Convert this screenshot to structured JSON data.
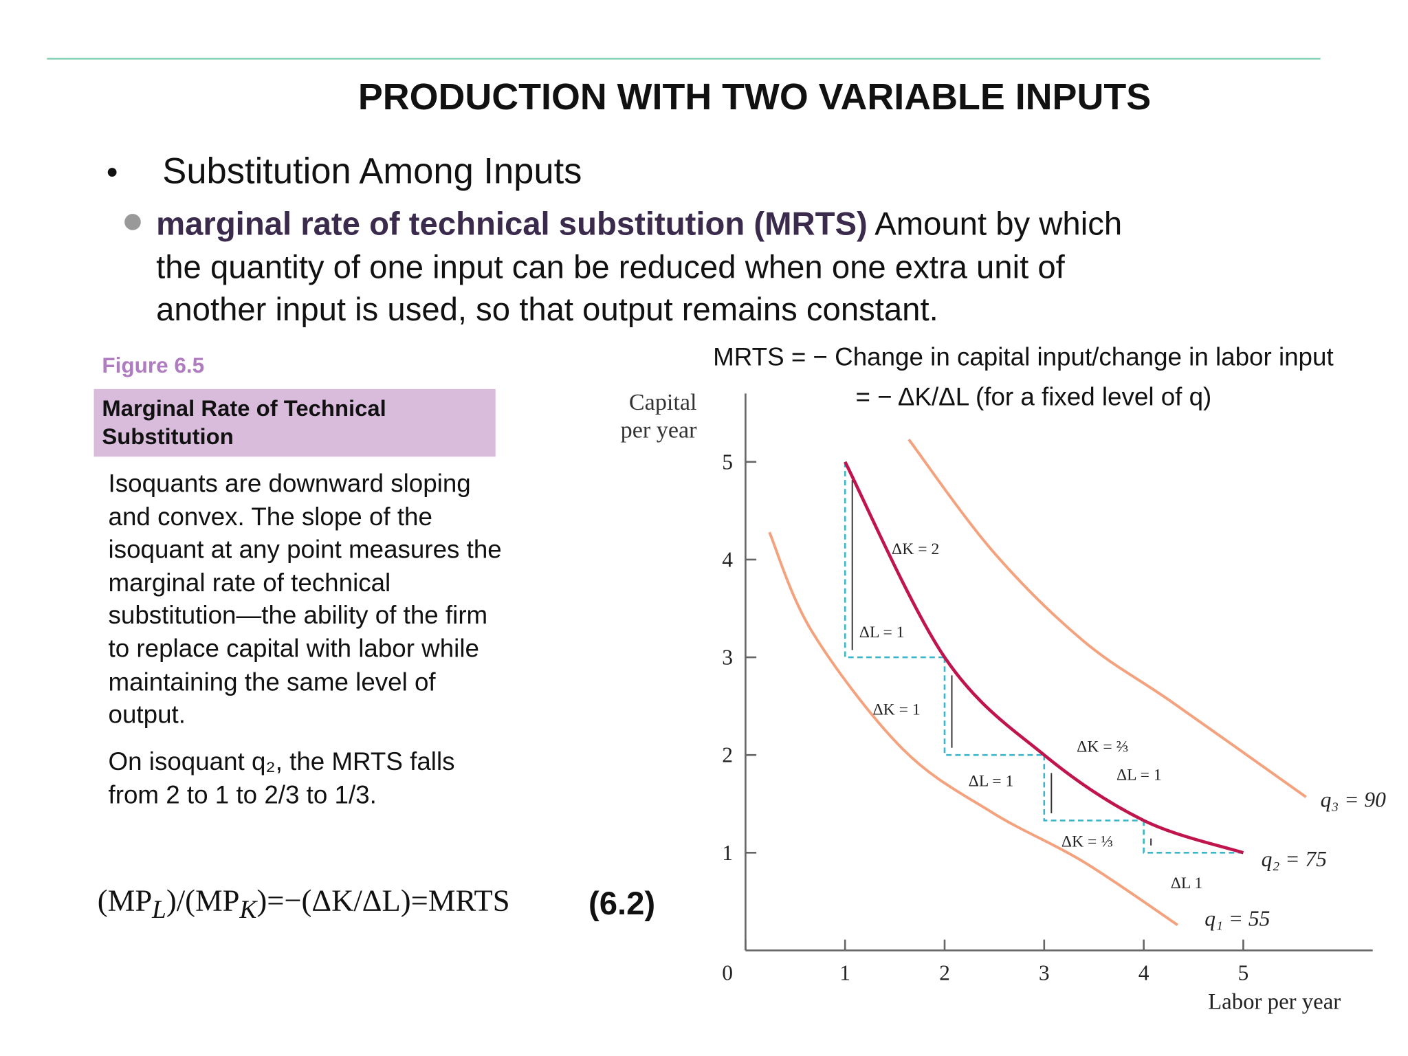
{
  "title": "PRODUCTION WITH TWO VARIABLE INPUTS",
  "bullet": "Substitution Among Inputs",
  "definition": {
    "term": "marginal rate of technical substitution (MRTS)",
    "text": "Amount by which the quantity of one input can be reduced when one extra unit of another input is used, so that output remains constant."
  },
  "mrts": [
    "MRTS = − Change in capital input/change in labor input",
    "= − ΔK/ΔL (for a fixed level of q)"
  ],
  "figure": {
    "number": "Figure 6.5",
    "heading": "Marginal Rate of Technical Substitution",
    "caption": "Isoquants are downward sloping and convex. The slope of the isoquant at any point measures the marginal rate of technical substitution—the ability of the firm to replace capital with labor while maintaining the same level of output.",
    "note": "On isoquant q₂, the MRTS falls from 2 to 1 to 2/3 to 1/3."
  },
  "equation": {
    "parts": [
      "(MP",
      "L",
      ")/(MP",
      "K",
      ")=−(ΔK/ΔL)=MRTS"
    ],
    "number": "(6.2)"
  },
  "chart_data": {
    "type": "line",
    "x_label": "Labor per year",
    "y_label": "Capital per year",
    "xlim": [
      0,
      6.3
    ],
    "ylim": [
      0,
      5.7
    ],
    "xticks": [
      0,
      1,
      2,
      3,
      4,
      5
    ],
    "yticks": [
      1,
      2,
      3,
      4,
      5
    ],
    "series": [
      {
        "name": "q₁ = 55",
        "color": "#f4a27e",
        "x": [
          0.24,
          0.67,
          1.58,
          2.48,
          3.39,
          4.34
        ],
        "values": [
          4.28,
          3.26,
          2.06,
          1.41,
          0.91,
          0.26
        ]
      },
      {
        "name": "q₂ = 75",
        "color": "#c0144c",
        "x": [
          1,
          2,
          3,
          4,
          5
        ],
        "values": [
          5,
          3,
          2,
          1.33,
          1
        ]
      },
      {
        "name": "q₃ = 90",
        "color": "#f4a27e",
        "x": [
          1.64,
          2.48,
          3.39,
          4.3,
          5.63
        ],
        "values": [
          5.23,
          4.09,
          3.17,
          2.53,
          1.57
        ]
      }
    ],
    "annotations": [
      "ΔK = 2",
      "ΔL = 1",
      "ΔK = 1",
      "ΔL = 1",
      "ΔK = ⅔",
      "ΔL = 1",
      "ΔK = ⅓",
      "ΔL 1"
    ]
  }
}
